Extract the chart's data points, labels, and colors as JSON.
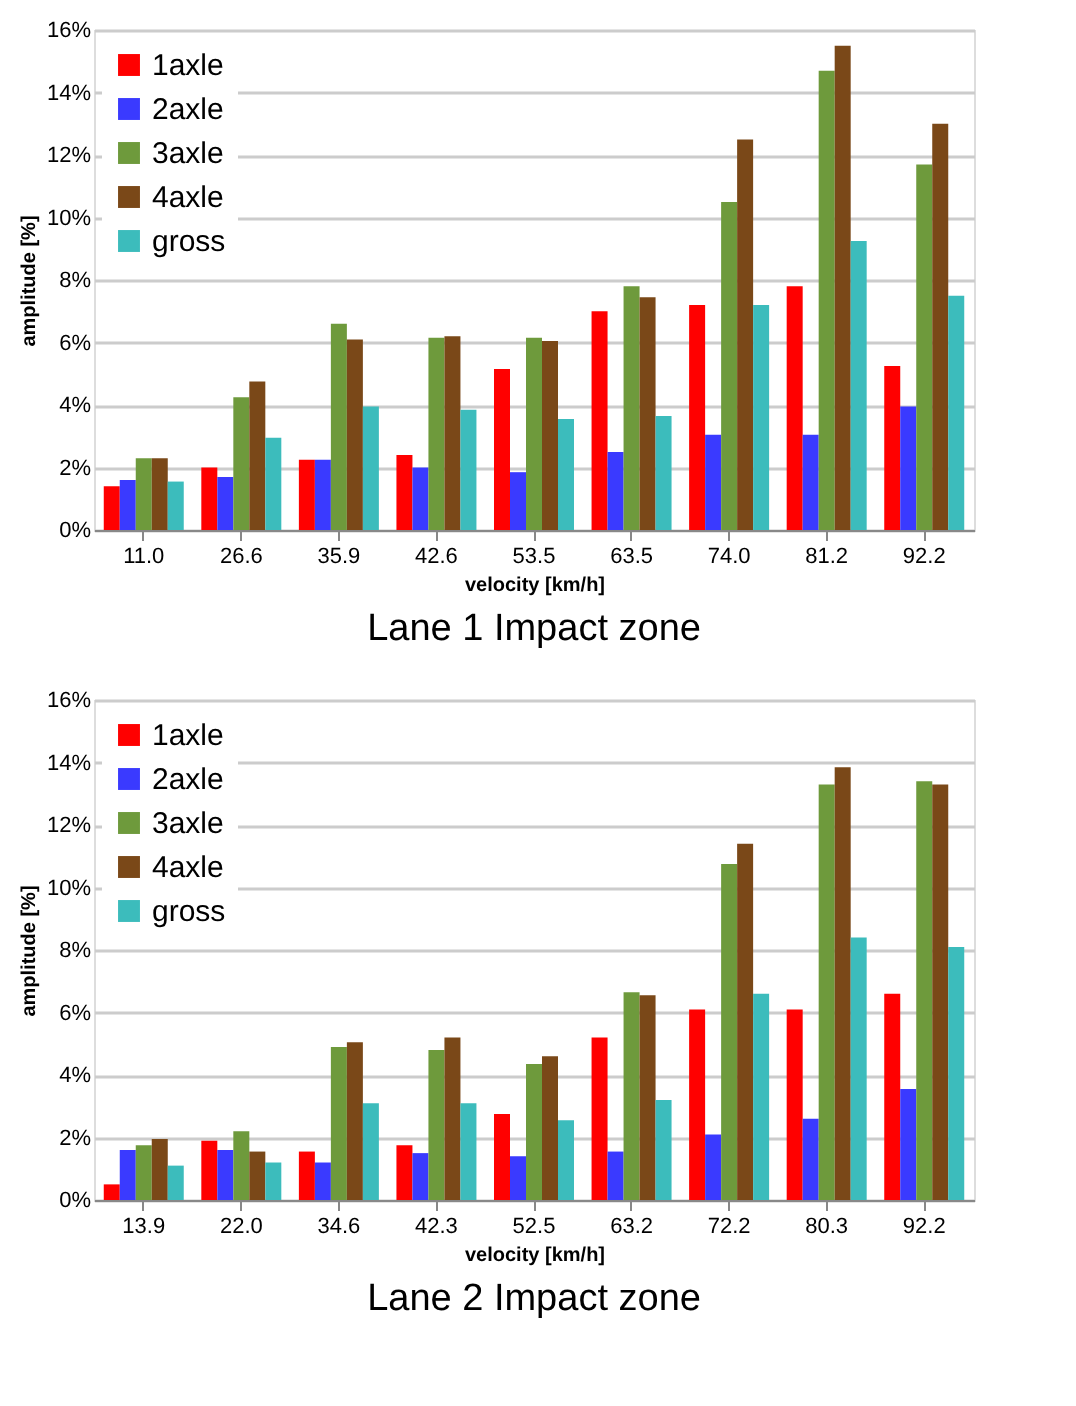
{
  "chart_data": [
    {
      "type": "bar",
      "title": "Lane 1 Impact zone",
      "xlabel": "velocity [km/h]",
      "ylabel": "amplitude [%]",
      "categories": [
        "11.0",
        "26.6",
        "35.9",
        "42.6",
        "53.5",
        "63.5",
        "74.0",
        "81.2",
        "92.2"
      ],
      "series": [
        {
          "name": "1axle",
          "color": "#ff0000",
          "values": [
            1.4,
            2.0,
            2.25,
            2.4,
            5.15,
            7.0,
            7.2,
            7.8,
            5.25
          ]
        },
        {
          "name": "2axle",
          "color": "#3a3aff",
          "values": [
            1.6,
            1.7,
            2.25,
            2.0,
            1.85,
            2.5,
            3.05,
            3.05,
            3.95
          ]
        },
        {
          "name": "3axle",
          "color": "#6e9a3c",
          "values": [
            2.3,
            4.25,
            6.6,
            6.15,
            6.15,
            7.8,
            10.5,
            14.7,
            11.7
          ]
        },
        {
          "name": "4axle",
          "color": "#7a4818",
          "values": [
            2.3,
            4.75,
            6.1,
            6.2,
            6.05,
            7.45,
            12.5,
            15.5,
            13.0
          ]
        },
        {
          "name": "gross",
          "color": "#3cbcbc",
          "values": [
            1.55,
            2.95,
            3.95,
            3.85,
            3.55,
            3.65,
            7.2,
            9.25,
            7.5
          ]
        }
      ],
      "ylim": [
        0,
        16
      ],
      "yticks": [
        {
          "value": 0,
          "label": "0%"
        },
        {
          "value": 2,
          "label": "2%"
        },
        {
          "value": 4,
          "label": "4%"
        },
        {
          "value": 6,
          "label": "6%"
        },
        {
          "value": 8,
          "label": "8%"
        },
        {
          "value": 10,
          "label": "10%"
        },
        {
          "value": 12,
          "label": "12%"
        },
        {
          "value": 14,
          "label": "14%"
        },
        {
          "value": 16,
          "label": "16%"
        }
      ],
      "grid": "y",
      "legend": "top left"
    },
    {
      "type": "bar",
      "title": "Lane 2 Impact zone",
      "xlabel": "velocity [km/h]",
      "ylabel": "amplitude [%]",
      "categories": [
        "13.9",
        "22.0",
        "34.6",
        "42.3",
        "52.5",
        "63.2",
        "72.2",
        "80.3",
        "92.2"
      ],
      "series": [
        {
          "name": "1axle",
          "color": "#ff0000",
          "values": [
            0.5,
            1.9,
            1.55,
            1.75,
            2.75,
            5.2,
            6.1,
            6.1,
            6.6
          ]
        },
        {
          "name": "2axle",
          "color": "#3a3aff",
          "values": [
            1.6,
            1.6,
            1.2,
            1.5,
            1.4,
            1.55,
            2.1,
            2.6,
            3.55
          ]
        },
        {
          "name": "3axle",
          "color": "#6e9a3c",
          "values": [
            1.75,
            2.2,
            4.9,
            4.8,
            4.35,
            6.65,
            10.75,
            13.3,
            13.4
          ]
        },
        {
          "name": "4axle",
          "color": "#7a4818",
          "values": [
            1.95,
            1.55,
            5.05,
            5.2,
            4.6,
            6.55,
            11.4,
            13.85,
            13.3
          ]
        },
        {
          "name": "gross",
          "color": "#3cbcbc",
          "values": [
            1.1,
            1.2,
            3.1,
            3.1,
            2.55,
            3.2,
            6.6,
            8.4,
            8.1
          ]
        }
      ],
      "ylim": [
        0,
        16
      ],
      "yticks": [
        {
          "value": 0,
          "label": "0%"
        },
        {
          "value": 2,
          "label": "2%"
        },
        {
          "value": 4,
          "label": "4%"
        },
        {
          "value": 6,
          "label": "6%"
        },
        {
          "value": 8,
          "label": "8%"
        },
        {
          "value": 10,
          "label": "10%"
        },
        {
          "value": 12,
          "label": "12%"
        },
        {
          "value": 14,
          "label": "14%"
        },
        {
          "value": 16,
          "label": "16%"
        }
      ],
      "grid": "y",
      "legend": "top left"
    }
  ]
}
